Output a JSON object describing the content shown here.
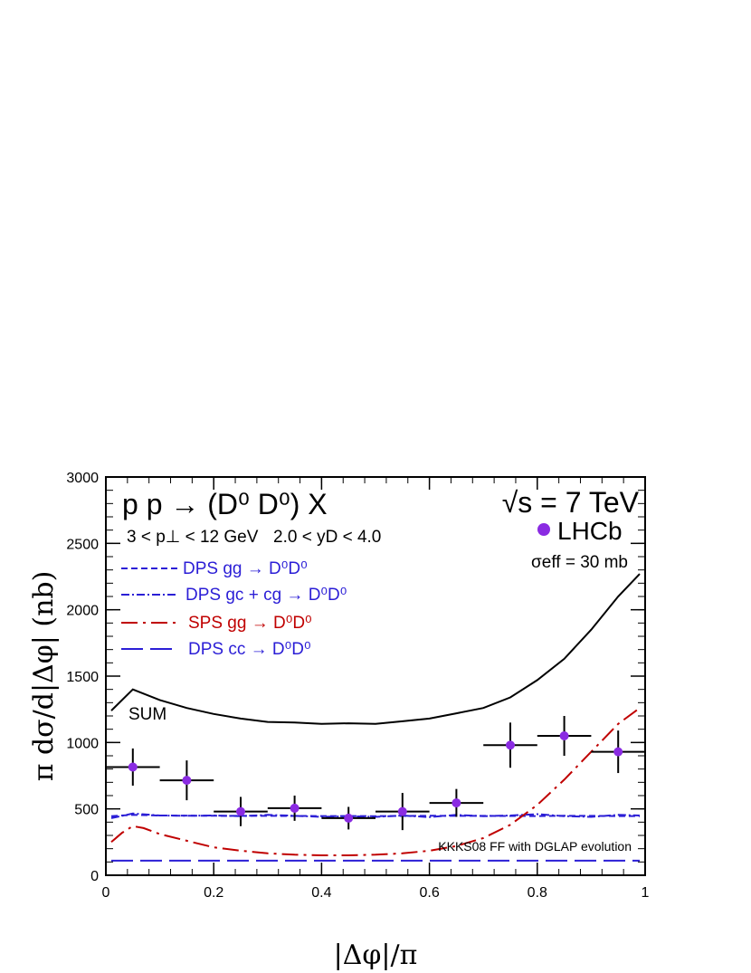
{
  "chart_data": {
    "type": "line",
    "title": "p p → (D⁰ D⁰) X",
    "xlabel": "|Δφ|/π",
    "ylabel": "π dσ/d|Δφ|    (nb)",
    "xlim": [
      0,
      1
    ],
    "ylim": [
      0,
      3000
    ],
    "x_ticks": [
      0,
      0.2,
      0.4,
      0.6,
      0.8,
      1
    ],
    "x_tick_labels": [
      "0",
      "0.2",
      "0.4",
      "0.6",
      "0.8",
      "1"
    ],
    "y_ticks": [
      0,
      500,
      1000,
      1500,
      2000,
      2500,
      3000
    ],
    "y_tick_labels": [
      "0",
      "500",
      "1000",
      "1500",
      "2000",
      "2500",
      "3000"
    ],
    "annotations": {
      "energy": "√s = 7 TeV",
      "pt_cut": "3 < p⊥ < 12 GeV",
      "y_cut": "2.0 < yD < 4.0",
      "sigma_eff": "σeff = 30 mb",
      "sum_label": "SUM",
      "model_note": "KKKS08 FF with DGLAP evolution"
    },
    "series": [
      {
        "name": "DPS gg → D⁰D⁰",
        "color": "#2b1ed6",
        "dash": "7,4",
        "x": [
          0.01,
          0.05,
          0.1,
          0.2,
          0.3,
          0.4,
          0.5,
          0.6,
          0.7,
          0.8,
          0.85,
          0.9,
          0.95,
          0.99
        ],
        "y": [
          445,
          455,
          450,
          448,
          447,
          446,
          445,
          448,
          447,
          446,
          448,
          447,
          446,
          445
        ]
      },
      {
        "name": "DPS gc + cg → D⁰D⁰",
        "color": "#2b1ed6",
        "dash": "9,3,2,3",
        "x": [
          0.01,
          0.05,
          0.1,
          0.15,
          0.2,
          0.25,
          0.3,
          0.35,
          0.4,
          0.45,
          0.5,
          0.55,
          0.6,
          0.65,
          0.7,
          0.75,
          0.8,
          0.85,
          0.9,
          0.95,
          0.99
        ],
        "y": [
          430,
          465,
          450,
          448,
          450,
          445,
          455,
          448,
          440,
          445,
          440,
          450,
          438,
          455,
          445,
          450,
          460,
          445,
          440,
          455,
          450
        ]
      },
      {
        "name": "SPS gg → D⁰D⁰",
        "color": "#c00000",
        "dash": "18,6,3,6",
        "x": [
          0.01,
          0.03,
          0.05,
          0.07,
          0.1,
          0.15,
          0.2,
          0.25,
          0.3,
          0.35,
          0.4,
          0.45,
          0.5,
          0.55,
          0.6,
          0.65,
          0.7,
          0.75,
          0.8,
          0.85,
          0.9,
          0.95,
          0.99
        ],
        "y": [
          250,
          320,
          370,
          355,
          310,
          260,
          210,
          185,
          165,
          155,
          150,
          150,
          155,
          165,
          185,
          220,
          280,
          380,
          530,
          720,
          930,
          1140,
          1260
        ]
      },
      {
        "name": "DPS cc → D⁰D⁰",
        "color": "#2b1ed6",
        "dash": "24,8",
        "x": [
          0.01,
          0.2,
          0.4,
          0.6,
          0.8,
          0.99
        ],
        "y": [
          110,
          110,
          110,
          110,
          110,
          110
        ]
      },
      {
        "name": "SUM",
        "color": "#000000",
        "dash": "",
        "x": [
          0.01,
          0.05,
          0.1,
          0.15,
          0.2,
          0.25,
          0.3,
          0.35,
          0.4,
          0.45,
          0.5,
          0.55,
          0.6,
          0.65,
          0.7,
          0.75,
          0.8,
          0.85,
          0.9,
          0.95,
          0.99
        ],
        "y": [
          1240,
          1400,
          1320,
          1260,
          1215,
          1180,
          1155,
          1150,
          1140,
          1145,
          1140,
          1160,
          1180,
          1220,
          1260,
          1340,
          1470,
          1630,
          1850,
          2100,
          2270
        ]
      }
    ],
    "points": {
      "name": "LHCb",
      "color": "#8a2be2",
      "x": [
        0.05,
        0.15,
        0.25,
        0.35,
        0.45,
        0.55,
        0.65,
        0.75,
        0.85,
        0.95
      ],
      "y": [
        815,
        715,
        480,
        505,
        430,
        480,
        545,
        980,
        1050,
        930
      ],
      "xerr": [
        0.05,
        0.05,
        0.05,
        0.05,
        0.05,
        0.05,
        0.05,
        0.05,
        0.05,
        0.05
      ],
      "yerr": [
        140,
        150,
        110,
        95,
        85,
        140,
        105,
        170,
        150,
        160
      ]
    }
  }
}
